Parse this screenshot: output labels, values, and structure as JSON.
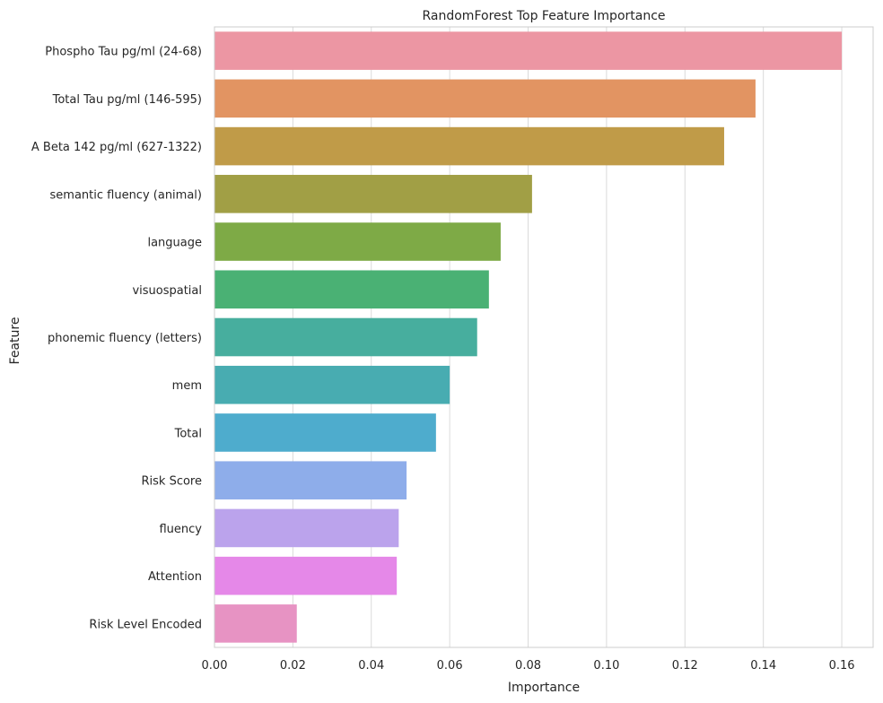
{
  "chart_data": {
    "type": "bar",
    "orientation": "horizontal",
    "title": "RandomForest Top Feature Importance",
    "xlabel": "Importance",
    "ylabel": "Feature",
    "xlim": [
      0,
      0.168
    ],
    "xticks": [
      "0.00",
      "0.02",
      "0.04",
      "0.06",
      "0.08",
      "0.10",
      "0.12",
      "0.14",
      "0.16"
    ],
    "grid": true,
    "categories": [
      "Phospho Tau pg/ml (24-68)",
      "Total Tau pg/ml (146-595)",
      "A Beta 142 pg/ml (627-1322)",
      "semantic fluency (animal)",
      "language",
      "visuospatial",
      "phonemic fluency (letters)",
      "mem",
      "Total",
      "Risk Score",
      "fluency",
      "Attention",
      "Risk Level Encoded"
    ],
    "values": [
      0.16,
      0.138,
      0.13,
      0.081,
      0.073,
      0.07,
      0.067,
      0.06,
      0.0565,
      0.049,
      0.047,
      0.0465,
      0.021
    ],
    "colors": [
      "#ec96a3",
      "#e29462",
      "#c09b48",
      "#a19f45",
      "#7eaa46",
      "#4ab174",
      "#47ae9e",
      "#48acb1",
      "#4eaccd",
      "#8eadea",
      "#bba3ec",
      "#e588e8",
      "#e793c3"
    ]
  }
}
